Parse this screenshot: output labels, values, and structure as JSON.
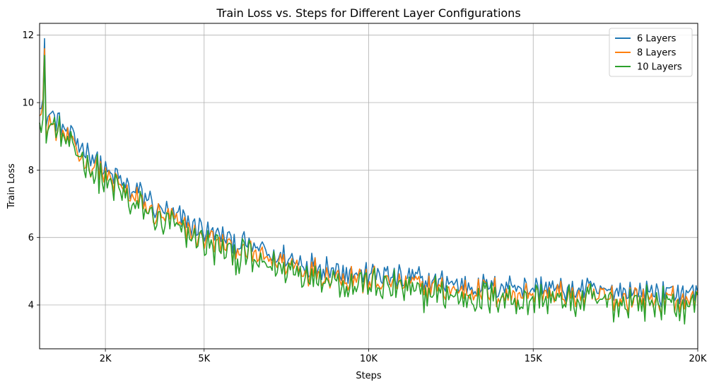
{
  "chart_data": {
    "type": "line",
    "title": "Train Loss vs. Steps for Different Layer Configurations",
    "xlabel": "Steps",
    "ylabel": "Train Loss",
    "xlim": [
      0,
      20000
    ],
    "ylim": [
      2.7,
      12.35
    ],
    "xticks": [
      2000,
      5000,
      10000,
      15000,
      20000
    ],
    "xtick_labels": [
      "2K",
      "5K",
      "10K",
      "15K",
      "20K"
    ],
    "yticks": [
      4,
      6,
      8,
      10,
      12
    ],
    "ytick_labels": [
      "4",
      "6",
      "8",
      "10",
      "12"
    ],
    "grid": true,
    "legend_position": "top-right",
    "num_points": 400,
    "series": [
      {
        "name": "6 Layers",
        "color": "#1f77b4",
        "offset": 0.3,
        "amplitude": 0.55,
        "peak": 11.9
      },
      {
        "name": "8 Layers",
        "color": "#ff7f0e",
        "offset": 0.1,
        "amplitude": 0.6,
        "peak": 11.6
      },
      {
        "name": "10 Layers",
        "color": "#2ca02c",
        "offset": -0.05,
        "amplitude": 0.75,
        "peak": 11.4
      }
    ],
    "base_curve": {
      "description": "approx. exponential decay",
      "start": 9.8,
      "asymptote": 4.0,
      "decay_steps": 4500
    }
  }
}
